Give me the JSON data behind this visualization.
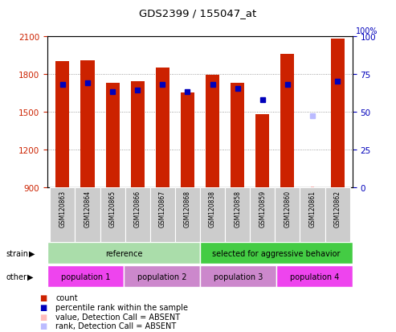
{
  "title": "GDS2399 / 155047_at",
  "samples": [
    "GSM120863",
    "GSM120864",
    "GSM120865",
    "GSM120866",
    "GSM120867",
    "GSM120868",
    "GSM120838",
    "GSM120858",
    "GSM120859",
    "GSM120860",
    "GSM120861",
    "GSM120862"
  ],
  "count_values": [
    1900,
    1905,
    1730,
    1740,
    1850,
    1650,
    1790,
    1730,
    1480,
    1960,
    900,
    2080
  ],
  "rank_values": [
    68,
    69,
    63,
    64,
    68,
    63,
    68,
    65,
    58,
    68,
    null,
    70
  ],
  "absent_val_idx": 10,
  "absent_val_yval": 900,
  "absent_rank_idx": 10,
  "absent_rank_yval": 47,
  "ylim_left": [
    900,
    2100
  ],
  "ylim_right": [
    0,
    100
  ],
  "yticks_left": [
    900,
    1200,
    1500,
    1800,
    2100
  ],
  "yticks_right": [
    0,
    25,
    50,
    75,
    100
  ],
  "bar_color": "#cc2200",
  "rank_color": "#0000bb",
  "absent_val_color": "#ffbbbb",
  "absent_rank_color": "#bbbbff",
  "grid_color": "#888888",
  "bg_color": "#ffffff",
  "plot_bg": "#ffffff",
  "strain_row": [
    [
      "reference",
      0,
      6
    ],
    [
      "selected for aggressive behavior",
      6,
      12
    ]
  ],
  "pop_row": [
    [
      "population 1",
      0,
      3
    ],
    [
      "population 2",
      3,
      6
    ],
    [
      "population 3",
      6,
      9
    ],
    [
      "population 4",
      9,
      12
    ]
  ],
  "pop_colors": [
    "#ee44ee",
    "#cc88cc",
    "#cc88cc",
    "#ee44ee"
  ],
  "strain_colors": [
    "#aaddaa",
    "#44cc44"
  ],
  "left_axis_color": "#cc2200",
  "right_axis_color": "#0000bb",
  "xtick_bg": "#cccccc",
  "bar_width": 0.55
}
